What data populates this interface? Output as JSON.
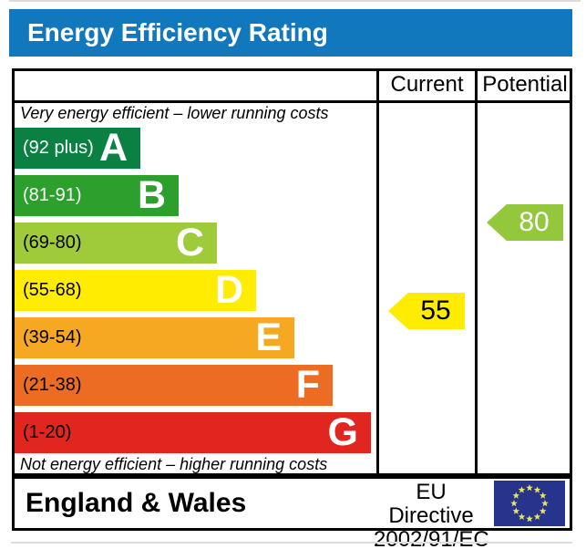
{
  "title": {
    "text": "Energy Efficiency Rating",
    "bg": "#1278be",
    "color": "#ffffff"
  },
  "table": {
    "header": {
      "current": "Current",
      "potential": "Potential"
    },
    "top_note": "Very energy efficient – lower running costs",
    "bottom_note": "Not energy efficient – higher running costs"
  },
  "chart_data": {
    "type": "bar",
    "title": "Energy Efficiency Rating",
    "bands": [
      {
        "letter": "A",
        "label": "(92 plus)",
        "min": 92,
        "max": 100,
        "color": "#0b8043",
        "label_color": "#ffffff"
      },
      {
        "letter": "B",
        "label": "(81-91)",
        "min": 81,
        "max": 91,
        "color": "#2d9f2d",
        "label_color": "#ffffff"
      },
      {
        "letter": "C",
        "label": "(69-80)",
        "min": 69,
        "max": 80,
        "color": "#9fcb3b",
        "label_color": "#000000"
      },
      {
        "letter": "D",
        "label": "(55-68)",
        "min": 55,
        "max": 68,
        "color": "#ffec00",
        "label_color": "#000000"
      },
      {
        "letter": "E",
        "label": "(39-54)",
        "min": 39,
        "max": 54,
        "color": "#f6a823",
        "label_color": "#000000"
      },
      {
        "letter": "F",
        "label": "(21-38)",
        "min": 21,
        "max": 38,
        "color": "#ec6c24",
        "label_color": "#000000"
      },
      {
        "letter": "G",
        "label": "(1-20)",
        "min": 1,
        "max": 20,
        "color": "#e1251f",
        "label_color": "#000000"
      }
    ],
    "current": {
      "value": 55,
      "band": "D",
      "arrow_color": "#ffec00",
      "text_color": "#000000"
    },
    "potential": {
      "value": 80,
      "band": "C",
      "arrow_color": "#93c83d",
      "text_color": "#ffffff"
    }
  },
  "footer": {
    "region": "England & Wales",
    "directive_line1": "EU Directive",
    "directive_line2": "2002/91/EC",
    "flag": {
      "bg": "#26348b",
      "star_color": "#e8e45e"
    }
  }
}
